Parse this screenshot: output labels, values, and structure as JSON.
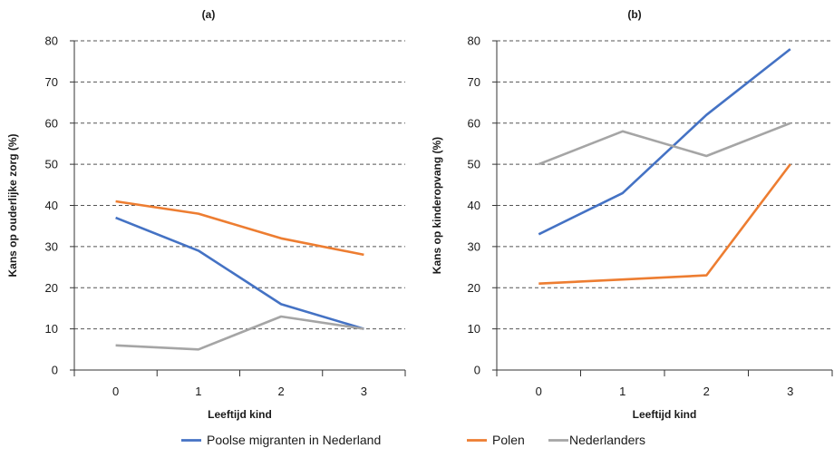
{
  "chart_data": [
    {
      "type": "line",
      "title": "(a)",
      "xlabel": "Leeftijd kind",
      "ylabel": "Kans op ouderlijke zorg (%)",
      "categories": [
        "0",
        "1",
        "2",
        "3"
      ],
      "ylim": [
        0,
        80
      ],
      "yticks": [
        0,
        10,
        20,
        30,
        40,
        50,
        60,
        70,
        80
      ],
      "grid": true,
      "series": [
        {
          "name": "Poolse migranten in Nederland",
          "color": "#4472C4",
          "values": [
            37,
            29,
            16,
            10
          ]
        },
        {
          "name": "Polen",
          "color": "#ED7D31",
          "values": [
            41,
            38,
            32,
            28
          ]
        },
        {
          "name": "Nederlanders",
          "color": "#A5A5A5",
          "values": [
            6,
            5,
            13,
            10
          ]
        }
      ]
    },
    {
      "type": "line",
      "title": "(b)",
      "xlabel": "Leeftijd kind",
      "ylabel": "Kans op kinderopvang (%)",
      "categories": [
        "0",
        "1",
        "2",
        "3"
      ],
      "ylim": [
        0,
        80
      ],
      "yticks": [
        0,
        10,
        20,
        30,
        40,
        50,
        60,
        70,
        80
      ],
      "grid": true,
      "series": [
        {
          "name": "Poolse migranten in Nederland",
          "color": "#4472C4",
          "values": [
            33,
            43,
            62,
            78
          ]
        },
        {
          "name": "Polen",
          "color": "#ED7D31",
          "values": [
            21,
            22,
            23,
            50
          ]
        },
        {
          "name": "Nederlanders",
          "color": "#A5A5A5",
          "values": [
            50,
            58,
            52,
            60
          ]
        }
      ]
    }
  ],
  "legend": {
    "placement": "bottom",
    "items": [
      {
        "label": "Poolse migranten in Nederland",
        "color": "#4472C4"
      },
      {
        "label": "Polen",
        "color": "#ED7D31"
      },
      {
        "label": "Nederlanders",
        "color": "#A5A5A5"
      }
    ]
  }
}
